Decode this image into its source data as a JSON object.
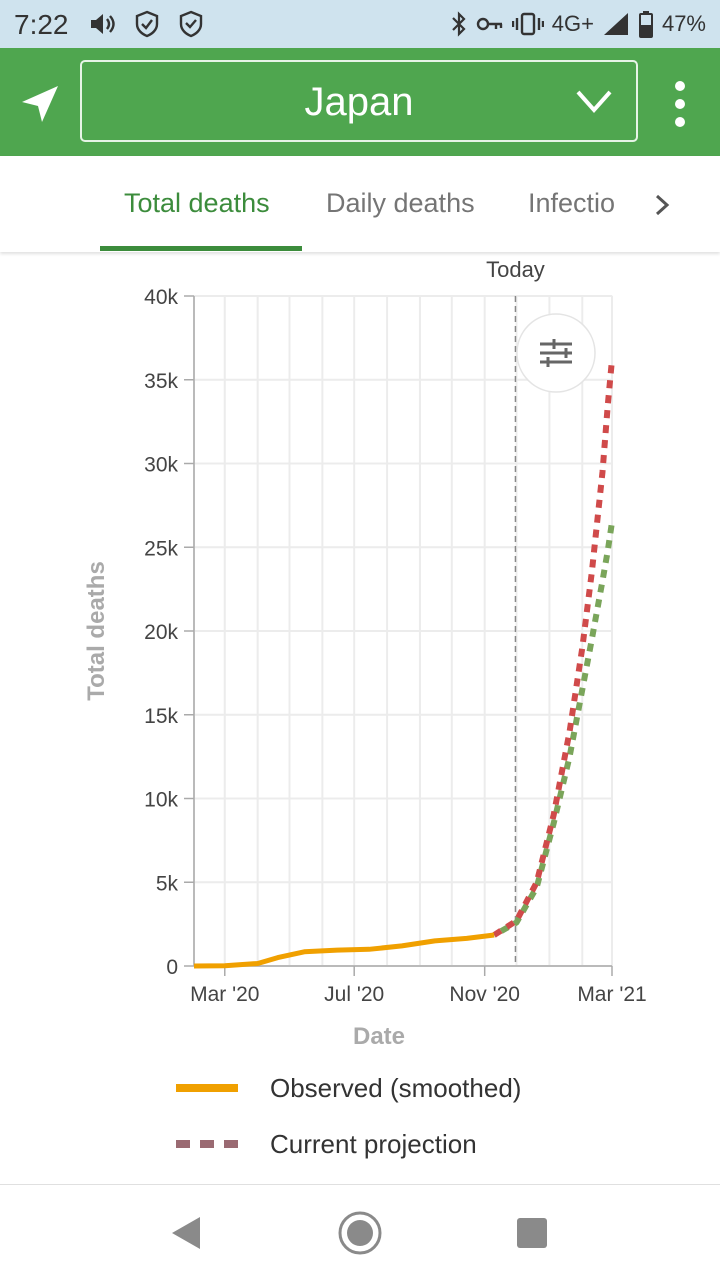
{
  "status_bar": {
    "time": "7:22",
    "network": "4G+",
    "battery": "47%",
    "icons": [
      "volume-icon",
      "shield-check-icon",
      "shield-icon",
      "bluetooth-icon",
      "key-icon",
      "vibrate-icon",
      "signal-icon",
      "battery-icon"
    ]
  },
  "app_bar": {
    "country": "Japan",
    "location_icon": "navigation-arrow-icon",
    "dropdown_icon": "chevron-down-icon",
    "menu_icon": "more-vertical-icon",
    "color": "#4fa64f"
  },
  "tabs": {
    "items": [
      {
        "label": "Total deaths",
        "active": true
      },
      {
        "label": "Daily deaths",
        "active": false
      },
      {
        "label": "Infectio",
        "active": false
      }
    ],
    "next_icon": "chevron-right-icon",
    "active_color": "#3c8c3c"
  },
  "filter_icon": "sliders-icon",
  "chart_data": {
    "type": "line",
    "ylabel": "Total deaths",
    "xlabel": "Date",
    "ylim": [
      0,
      40000
    ],
    "yticks": [
      0,
      5000,
      10000,
      15000,
      20000,
      25000,
      30000,
      35000,
      40000
    ],
    "ytick_labels": [
      "0",
      "5k",
      "10k",
      "15k",
      "20k",
      "25k",
      "30k",
      "35k",
      "40k"
    ],
    "xlim": [
      "2020-02-01",
      "2021-03-01"
    ],
    "xticks": [
      "2020-03-01",
      "2020-07-01",
      "2020-11-01",
      "2021-03-01"
    ],
    "xtick_labels": [
      "Mar '20",
      "Jul '20",
      "Nov '20",
      "Mar '21"
    ],
    "today_label": "Today",
    "today": "2020-11-30",
    "grid": true,
    "legend_position": "bottom",
    "series": [
      {
        "name": "Observed (smoothed)",
        "color": "#f0a000",
        "style": "solid",
        "x": [
          "2020-02-01",
          "2020-03-01",
          "2020-04-01",
          "2020-04-20",
          "2020-05-15",
          "2020-06-15",
          "2020-07-15",
          "2020-08-15",
          "2020-09-15",
          "2020-10-15",
          "2020-11-10"
        ],
        "y": [
          0,
          20,
          150,
          500,
          850,
          950,
          1000,
          1200,
          1500,
          1650,
          1850
        ]
      },
      {
        "name": "Current projection",
        "color": "#d04a4a",
        "style": "dashed",
        "x": [
          "2020-11-10",
          "2020-12-01",
          "2020-12-20",
          "2021-01-05",
          "2021-01-20",
          "2021-02-01",
          "2021-02-10",
          "2021-02-20",
          "2021-02-25",
          "2021-03-01"
        ],
        "y": [
          1850,
          2700,
          5000,
          9000,
          14000,
          19000,
          23500,
          29500,
          33500,
          36200
        ]
      },
      {
        "name": "",
        "color": "#7aa55a",
        "style": "dashed",
        "x": [
          "2020-11-10",
          "2020-12-01",
          "2020-12-20",
          "2021-01-05",
          "2021-01-20",
          "2021-02-01",
          "2021-02-10",
          "2021-02-20",
          "2021-02-25",
          "2021-03-01"
        ],
        "y": [
          1850,
          2600,
          4700,
          8500,
          12500,
          16500,
          19500,
          23000,
          24800,
          26500
        ]
      }
    ]
  },
  "legend": {
    "items": [
      {
        "label": "Observed (smoothed)",
        "color": "#f0a000",
        "style": "solid"
      },
      {
        "label": "Current projection",
        "color": "#9a6a72",
        "style": "dashed"
      }
    ]
  },
  "nav_bar": {
    "icons": [
      "back-icon",
      "home-icon",
      "recents-icon"
    ]
  }
}
